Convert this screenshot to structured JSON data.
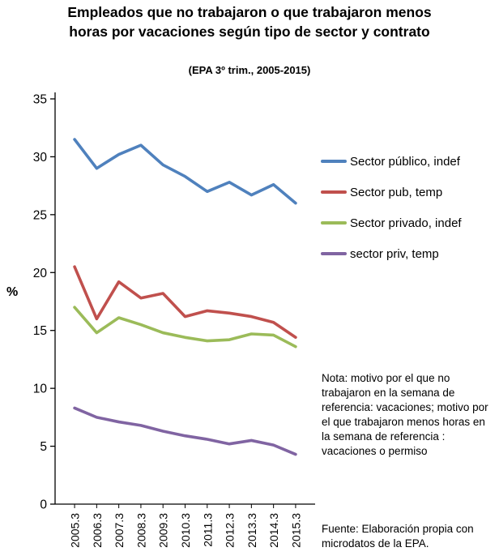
{
  "title": "Empleados que no trabajaron o que trabajaron menos horas por vacaciones según tipo de sector y contrato",
  "subtitle": "(EPA 3º trim., 2005-2015)",
  "y_axis_title": "%",
  "note": "Nota: motivo por el que no trabajaron en la semana de referencia: vacaciones; motivo por el que trabajaron menos horas en la semana de referencia :  vacaciones o permiso",
  "source": "Fuente: Elaboración propia con microdatos de la EPA.",
  "chart_data": {
    "type": "line",
    "title": "Empleados que no trabajaron o que trabajaron menos horas por vacaciones según tipo de sector y contrato",
    "subtitle": "(EPA 3º trim., 2005-2015)",
    "categories": [
      "2005.3",
      "2006.3",
      "2007.3",
      "2008.3",
      "2009.3",
      "2010.3",
      "2011.3",
      "2012.3",
      "2013.3",
      "2014.3",
      "2015.3"
    ],
    "series": [
      {
        "name": "Sector público, indef",
        "color": "#4F81BD",
        "values": [
          31.5,
          29.0,
          30.2,
          31.0,
          29.3,
          28.3,
          27.0,
          27.8,
          26.7,
          27.6,
          26.0
        ]
      },
      {
        "name": "Sector pub, temp",
        "color": "#C0504D",
        "values": [
          20.5,
          16.0,
          19.2,
          17.8,
          18.2,
          16.2,
          16.7,
          16.5,
          16.2,
          15.7,
          14.4
        ]
      },
      {
        "name": "Sector privado, indef",
        "color": "#9BBB59",
        "values": [
          17.0,
          14.8,
          16.1,
          15.5,
          14.8,
          14.4,
          14.1,
          14.2,
          14.7,
          14.6,
          13.6
        ]
      },
      {
        "name": "sector priv, temp",
        "color": "#8064A2",
        "values": [
          8.3,
          7.5,
          7.1,
          6.8,
          6.3,
          5.9,
          5.6,
          5.2,
          5.5,
          5.1,
          4.3
        ]
      }
    ],
    "xlabel": "",
    "ylabel": "%",
    "ylim": [
      0,
      35
    ],
    "ytick_step": 5,
    "grid": false,
    "legend_position": "right",
    "axis_color": "#000000",
    "line_width": 3.6
  }
}
